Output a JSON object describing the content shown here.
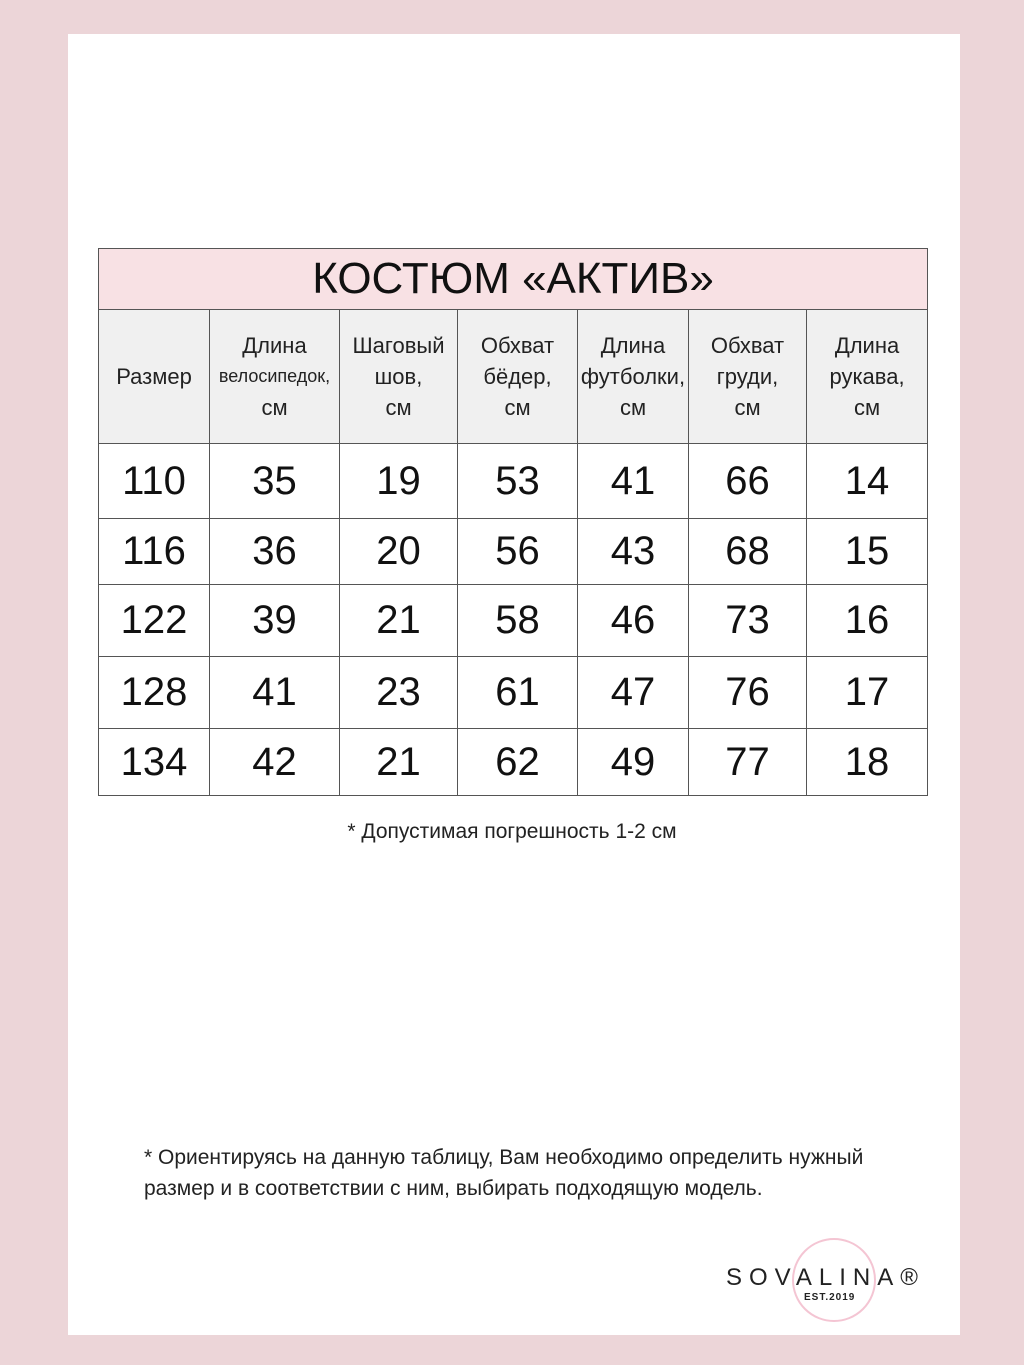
{
  "title": "КОСТЮМ «АКТИВ»",
  "columns": [
    [
      "Размер"
    ],
    [
      "Длина",
      "велосипедок,",
      "см"
    ],
    [
      "Шаговый",
      "шов,",
      "см"
    ],
    [
      "Обхват",
      "бёдер,",
      "см"
    ],
    [
      "Длина",
      "футболки,",
      "см"
    ],
    [
      "Обхват",
      "груди,",
      "см"
    ],
    [
      "Длина",
      "рукава,",
      "см"
    ]
  ],
  "rows": [
    [
      "110",
      "35",
      "19",
      "53",
      "41",
      "66",
      "14"
    ],
    [
      "116",
      "36",
      "20",
      "56",
      "43",
      "68",
      "15"
    ],
    [
      "122",
      "39",
      "21",
      "58",
      "46",
      "73",
      "16"
    ],
    [
      "128",
      "41",
      "23",
      "61",
      "47",
      "76",
      "17"
    ],
    [
      "134",
      "42",
      "21",
      "62",
      "49",
      "77",
      "18"
    ]
  ],
  "note_tolerance": "* Допустимая погрешность 1-2 см",
  "note_guidance": "* Ориентируясь на данную таблицу, Вам необходимо определить нужный размер и в соответствии с ним, выбирать подходящую модель.",
  "logo": {
    "brand": "SOVALINA®",
    "est": "EST.2019"
  },
  "colors": {
    "background": "#ecd5d8",
    "title_band": "#f8e1e4",
    "header_band": "#f0f0f0"
  }
}
